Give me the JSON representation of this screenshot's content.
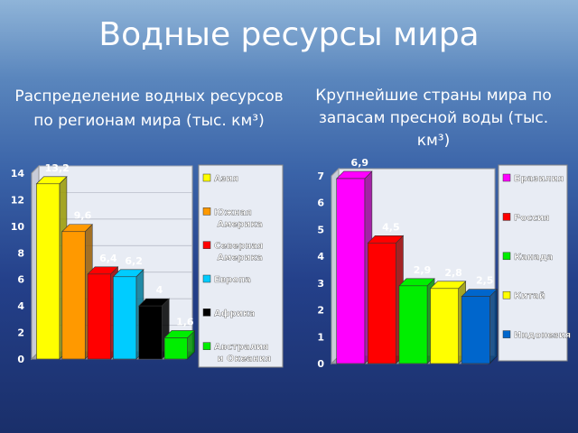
{
  "slide_title": "Водные ресурсы мира",
  "chart_data": [
    {
      "type": "bar3d",
      "title": "Распределение водных ресурсов по регионам мира (тыс. км³)",
      "categories": [
        "Азия",
        "Южная Америка",
        "Северная Америка",
        "Европа",
        "Африка",
        "Австралия и Океания"
      ],
      "values": [
        13.2,
        9.6,
        6.4,
        6.2,
        4,
        1.6
      ],
      "value_labels": [
        "13,2",
        "9,6",
        "6,4",
        "6,2",
        "4",
        "1,6"
      ],
      "colors": [
        "#ffff00",
        "#ff9900",
        "#ff0000",
        "#00ccff",
        "#000000",
        "#00ee00"
      ],
      "ylim": [
        0,
        14
      ],
      "yticks": [
        0,
        2,
        4,
        6,
        8,
        10,
        12,
        14
      ],
      "grid": true,
      "legend": "right"
    },
    {
      "type": "bar3d",
      "title": "Крупнейшие страны мира по запасам пресной воды (тыс. км³)",
      "categories": [
        "Бразилия",
        "Россия",
        "Канада",
        "Китай",
        "Индонезия"
      ],
      "values": [
        6.9,
        4.5,
        2.9,
        2.8,
        2.5
      ],
      "value_labels": [
        "6,9",
        "4,5",
        "2,9",
        "2,8",
        "2,5"
      ],
      "colors": [
        "#ff00ff",
        "#ff0000",
        "#00ee00",
        "#ffff00",
        "#0066cc"
      ],
      "ylim": [
        0,
        7
      ],
      "yticks": [
        0,
        1,
        2,
        3,
        4,
        5,
        6,
        7
      ],
      "grid": false,
      "legend": "right"
    }
  ]
}
